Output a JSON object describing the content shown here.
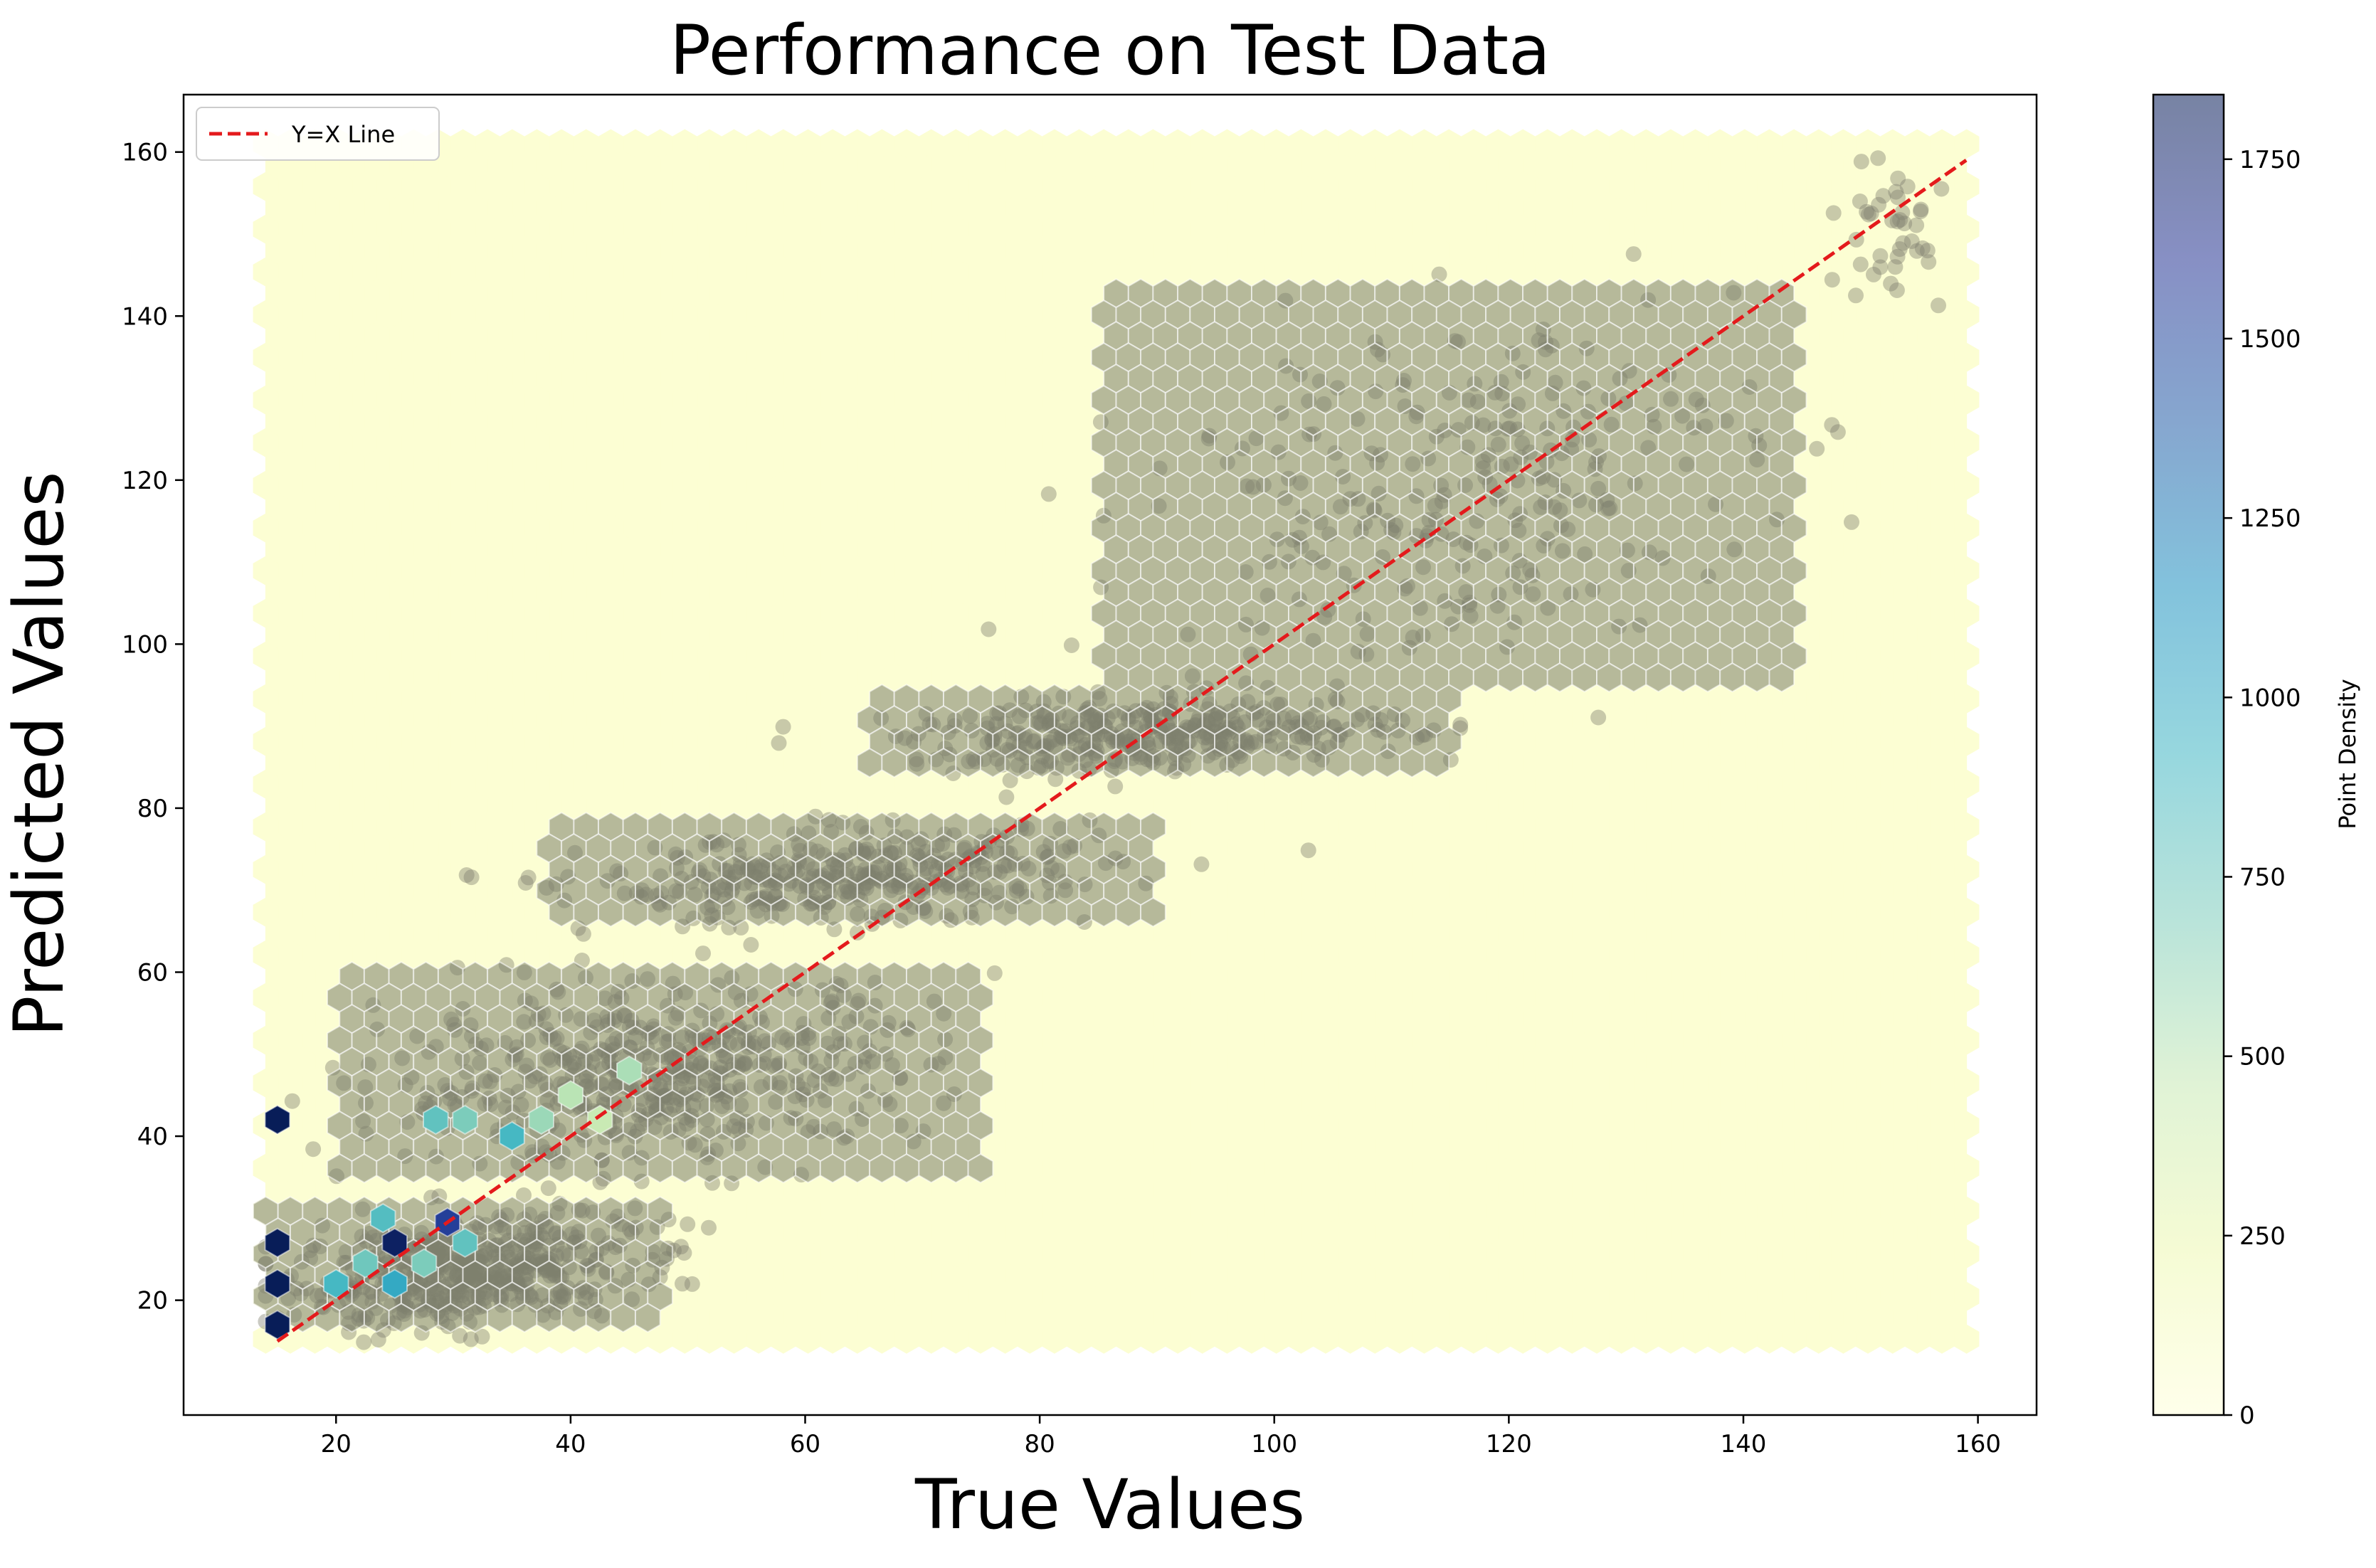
{
  "chart_data": {
    "type": "scatter",
    "title": "Performance on Test Data",
    "xlabel": "True Values",
    "ylabel": "Predicted Values",
    "xlim": [
      7,
      165
    ],
    "ylim": [
      6,
      167
    ],
    "xticks": [
      20,
      40,
      60,
      80,
      100,
      120,
      140,
      160
    ],
    "yticks": [
      20,
      40,
      60,
      80,
      100,
      120,
      140,
      160
    ],
    "grid": false,
    "legend": {
      "placement": "top-left",
      "entries": [
        {
          "label": "Y=X Line",
          "color": "#e41a1c",
          "style": "dashed"
        }
      ]
    },
    "reference_line": {
      "name": "Y=X Line",
      "x": [
        15,
        159
      ],
      "y": [
        15,
        159
      ],
      "color": "#e41a1c"
    },
    "hexbin": {
      "extent": {
        "x": [
          14,
          160
        ],
        "y": [
          13,
          161
        ]
      },
      "colorbar": {
        "label": "Point Density",
        "range": [
          0,
          1840
        ],
        "ticks": [
          0,
          250,
          500,
          750,
          1000,
          1250,
          1500,
          1750
        ],
        "colormap": "YlGnBu"
      }
    },
    "scatter_colour": "#808070",
    "clusters": [
      {
        "x": [
          14,
          48
        ],
        "y": [
          16,
          31
        ],
        "density": "high"
      },
      {
        "x": [
          20,
          75
        ],
        "y": [
          35,
          60
        ],
        "density": "high"
      },
      {
        "x": [
          38,
          90
        ],
        "y": [
          65,
          78
        ],
        "density": "medium"
      },
      {
        "x": [
          65,
          115
        ],
        "y": [
          84,
          94
        ],
        "density": "medium"
      },
      {
        "x": [
          85,
          145
        ],
        "y": [
          95,
          145
        ],
        "density": "low"
      },
      {
        "x": [
          145,
          159
        ],
        "y": [
          140,
          160
        ],
        "density": "sparse"
      }
    ],
    "high_density_hexes": [
      {
        "x": 25,
        "y": 27,
        "count": 1800
      },
      {
        "x": 29.5,
        "y": 29.5,
        "count": 1550
      },
      {
        "x": 20,
        "y": 22,
        "count": 900
      },
      {
        "x": 25,
        "y": 22,
        "count": 1000
      },
      {
        "x": 24,
        "y": 30,
        "count": 850
      },
      {
        "x": 22.5,
        "y": 24.5,
        "count": 750
      },
      {
        "x": 27.5,
        "y": 24.5,
        "count": 700
      },
      {
        "x": 31,
        "y": 27,
        "count": 800
      },
      {
        "x": 28.5,
        "y": 42,
        "count": 800
      },
      {
        "x": 31,
        "y": 42,
        "count": 700
      },
      {
        "x": 35,
        "y": 40,
        "count": 900
      },
      {
        "x": 37.5,
        "y": 42,
        "count": 600
      },
      {
        "x": 40,
        "y": 45,
        "count": 500
      },
      {
        "x": 45,
        "y": 48,
        "count": 550
      },
      {
        "x": 42.5,
        "y": 42,
        "count": 450
      },
      {
        "x": 15,
        "y": 42,
        "count": 1840
      },
      {
        "x": 15,
        "y": 27,
        "count": 1840
      },
      {
        "x": 15,
        "y": 22,
        "count": 1840
      },
      {
        "x": 15,
        "y": 17,
        "count": 1840
      }
    ]
  }
}
